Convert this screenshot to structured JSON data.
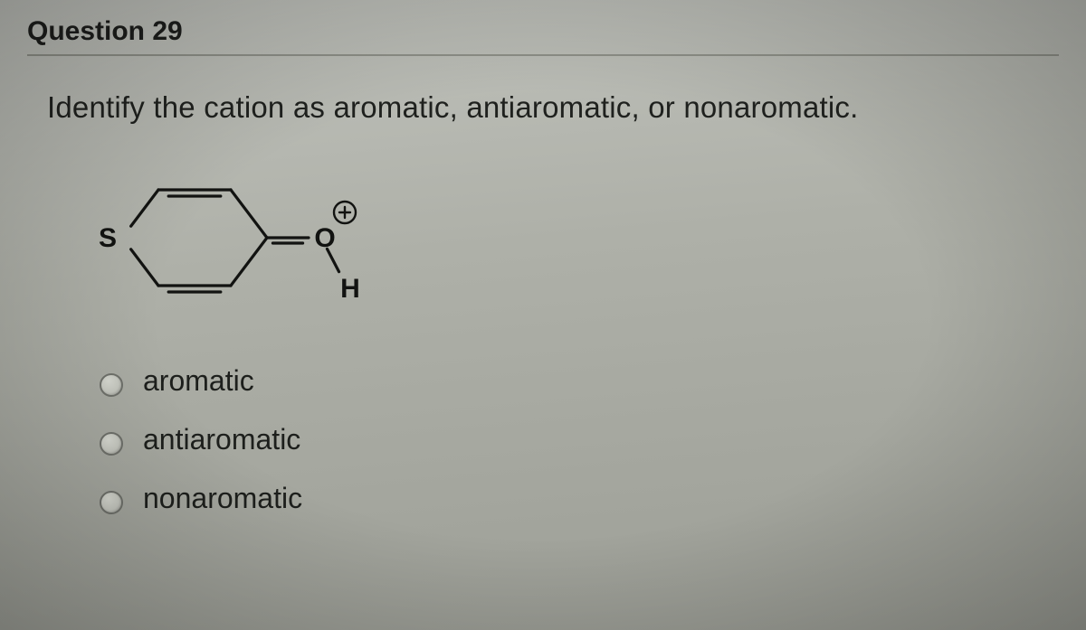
{
  "question": {
    "header": "Question 29",
    "prompt": "Identify the cation as aromatic, antiaromatic, or nonaromatic.",
    "structure": {
      "S_label": "S",
      "O_label": "O",
      "H_label": "H",
      "charge_label": "+",
      "stroke_color": "#121311",
      "stroke_width": 3.2,
      "font_family": "Arial",
      "font_size": 30,
      "font_weight": "bold"
    },
    "options": [
      {
        "label": "aromatic",
        "selected": false
      },
      {
        "label": "antiaromatic",
        "selected": false
      },
      {
        "label": "nonaromatic",
        "selected": false
      }
    ]
  },
  "colors": {
    "text": "#1d1f1c",
    "divider": "#8d8f87",
    "radio_border": "#6f716b",
    "bg_top": "#c0c2bc",
    "bg_bottom": "#9c9e96"
  }
}
